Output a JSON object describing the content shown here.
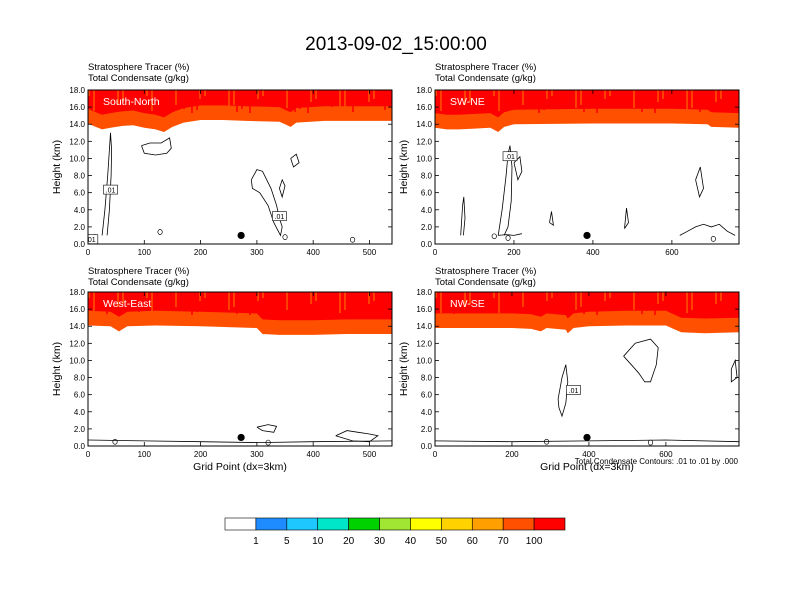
{
  "title": "2013-09-02_15:00:00",
  "colors": {
    "levels": [
      "#ffffff",
      "#1e8cff",
      "#1ec8ff",
      "#00e6c8",
      "#00d200",
      "#a0e632",
      "#ffff00",
      "#ffd200",
      "#ffa000",
      "#ff5000",
      "#ff0000"
    ],
    "contour": "#000000",
    "dot": "#000000"
  },
  "footnote": "Total Condensate Contours: .01 to .01 by .000",
  "chart_data": {
    "type": "contour",
    "colorbar": {
      "labels": [
        "1",
        "5",
        "10",
        "20",
        "30",
        "40",
        "50",
        "60",
        "70",
        "100"
      ]
    },
    "panels": [
      {
        "id": "south-north",
        "label": "South-North",
        "subtitle1": "Stratosphere Tracer   (%)",
        "subtitle2": "Total Condensate   (g/kg)",
        "ylabel": "Height (km)",
        "xlabel": "",
        "xlim": [
          0,
          540
        ],
        "ylim": [
          0,
          18
        ],
        "xticks": [
          0,
          100,
          200,
          300,
          400,
          500
        ],
        "yticks": [
          "0.0",
          "2.0",
          "4.0",
          "6.0",
          "8.0",
          "10.0",
          "12.0",
          "14.0",
          "16.0",
          "18.0"
        ],
        "marker": [
          272,
          1.0
        ],
        "contour_label": ".01",
        "contour_label_pos": [
          [
            40,
            6.3
          ],
          [
            340,
            3.2
          ],
          [
            5,
            0.5
          ]
        ],
        "tropopause": [
          [
            0,
            15.3
          ],
          [
            10,
            15.0
          ],
          [
            25,
            14.6
          ],
          [
            40,
            14.8
          ],
          [
            60,
            15.0
          ],
          [
            80,
            15.1
          ],
          [
            100,
            14.8
          ],
          [
            120,
            14.6
          ],
          [
            135,
            14.3
          ],
          [
            150,
            14.9
          ],
          [
            170,
            15.4
          ],
          [
            200,
            15.7
          ],
          [
            240,
            15.7
          ],
          [
            280,
            15.6
          ],
          [
            340,
            15.5
          ],
          [
            350,
            15.2
          ],
          [
            360,
            14.9
          ],
          [
            370,
            15.4
          ],
          [
            420,
            15.6
          ],
          [
            540,
            15.6
          ]
        ],
        "dips": [
          [
            12,
            0.8
          ],
          [
            128,
            1.4
          ],
          [
            350,
            0.8
          ],
          [
            470,
            0.5
          ]
        ],
        "contours": [
          [
            [
              25,
              1.0
            ],
            [
              30,
              4
            ],
            [
              35,
              8
            ],
            [
              38,
              11
            ],
            [
              40,
              13
            ],
            [
              42,
              11
            ],
            [
              41,
              8
            ],
            [
              38,
              4
            ],
            [
              34,
              1.0
            ]
          ],
          [
            [
              95,
              11.5
            ],
            [
              110,
              11.8
            ],
            [
              130,
              11.8
            ],
            [
              145,
              12.4
            ],
            [
              148,
              11.2
            ],
            [
              140,
              10.6
            ],
            [
              120,
              10.4
            ],
            [
              100,
              10.6
            ],
            [
              95,
              11.5
            ]
          ],
          [
            [
              290,
              7.5
            ],
            [
              300,
              8.7
            ],
            [
              310,
              8.5
            ],
            [
              325,
              6.5
            ],
            [
              335,
              4.5
            ],
            [
              340,
              3
            ],
            [
              345,
              2
            ],
            [
              342,
              1
            ],
            [
              330,
              2.5
            ],
            [
              320,
              4.5
            ],
            [
              305,
              6
            ],
            [
              292,
              6.5
            ],
            [
              290,
              7.5
            ]
          ],
          [
            [
              360,
              10.0
            ],
            [
              370,
              10.5
            ],
            [
              375,
              9.5
            ],
            [
              365,
              9.0
            ],
            [
              360,
              10.0
            ]
          ],
          [
            [
              340,
              6.5
            ],
            [
              345,
              7.5
            ],
            [
              350,
              6.8
            ],
            [
              345,
              5.5
            ],
            [
              340,
              6.5
            ]
          ]
        ]
      },
      {
        "id": "sw-ne",
        "label": "SW-NE",
        "subtitle1": "Stratosphere Tracer   (%)",
        "subtitle2": "Total Condensate   (g/kg)",
        "ylabel": "Height (km)",
        "xlabel": "",
        "xlim": [
          0,
          770
        ],
        "ylim": [
          0,
          18
        ],
        "xticks": [
          0,
          200,
          400,
          600
        ],
        "yticks": [
          "0.0",
          "2.0",
          "4.0",
          "6.0",
          "8.0",
          "10.0",
          "12.0",
          "14.0",
          "16.0",
          "18.0"
        ],
        "marker": [
          385,
          1.0
        ],
        "contour_label": ".01",
        "contour_label_pos": [
          [
            190,
            10.2
          ]
        ],
        "tropopause": [
          [
            0,
            14.8
          ],
          [
            30,
            14.6
          ],
          [
            60,
            14.6
          ],
          [
            100,
            14.7
          ],
          [
            140,
            14.8
          ],
          [
            160,
            14.3
          ],
          [
            175,
            14.9
          ],
          [
            200,
            15.2
          ],
          [
            400,
            15.3
          ],
          [
            600,
            15.3
          ],
          [
            690,
            15.2
          ],
          [
            700,
            14.9
          ],
          [
            770,
            14.8
          ]
        ],
        "dips": [
          [
            150,
            0.9
          ],
          [
            185,
            0.7
          ],
          [
            705,
            0.6
          ]
        ],
        "contours": [
          [
            [
              160,
              1.0
            ],
            [
              170,
              4
            ],
            [
              180,
              8
            ],
            [
              185,
              10.5
            ],
            [
              190,
              11.5
            ],
            [
              195,
              9
            ],
            [
              193,
              5
            ],
            [
              185,
              2
            ],
            [
              175,
              1
            ]
          ],
          [
            [
              160,
              1.0
            ],
            [
              180,
              1.1
            ],
            [
              200,
              1.0
            ],
            [
              220,
              1.2
            ]
          ],
          [
            [
              65,
              1.0
            ],
            [
              70,
              4.5
            ],
            [
              73,
              5.5
            ],
            [
              76,
              3
            ],
            [
              72,
              1.0
            ]
          ],
          [
            [
              200,
              9.5
            ],
            [
              215,
              10.2
            ],
            [
              220,
              8.5
            ],
            [
              210,
              7.5
            ],
            [
              200,
              9.5
            ]
          ],
          [
            [
              290,
              2.5
            ],
            [
              295,
              3.8
            ],
            [
              300,
              2.2
            ],
            [
              290,
              2.5
            ]
          ],
          [
            [
              480,
              1.8
            ],
            [
              485,
              4.2
            ],
            [
              490,
              2.5
            ],
            [
              480,
              1.8
            ]
          ],
          [
            [
              660,
              7.5
            ],
            [
              672,
              9.0
            ],
            [
              680,
              6.5
            ],
            [
              670,
              5.5
            ],
            [
              660,
              7.5
            ]
          ],
          [
            [
              620,
              1.0
            ],
            [
              640,
              1.5
            ],
            [
              660,
              2.0
            ],
            [
              680,
              2.3
            ],
            [
              700,
              2.0
            ],
            [
              720,
              2.3
            ],
            [
              740,
              1.5
            ],
            [
              760,
              1.0
            ]
          ]
        ]
      },
      {
        "id": "west-east",
        "label": "West-East",
        "subtitle1": "Stratosphere Tracer   (%)",
        "subtitle2": "Total Condensate   (g/kg)",
        "ylabel": "Height (km)",
        "xlabel": "Grid Point (dx=3km)",
        "xlim": [
          0,
          540
        ],
        "ylim": [
          0,
          18
        ],
        "xticks": [
          0,
          100,
          200,
          300,
          400,
          500
        ],
        "yticks": [
          "0.0",
          "2.0",
          "4.0",
          "6.0",
          "8.0",
          "10.0",
          "12.0",
          "14.0",
          "16.0",
          "18.0"
        ],
        "marker": [
          272,
          1.0
        ],
        "contour_label": "",
        "contour_label_pos": [],
        "tropopause": [
          [
            0,
            15.3
          ],
          [
            40,
            15.2
          ],
          [
            55,
            14.6
          ],
          [
            70,
            15.2
          ],
          [
            120,
            15.3
          ],
          [
            200,
            15.2
          ],
          [
            300,
            15.0
          ],
          [
            310,
            14.3
          ],
          [
            340,
            14.2
          ],
          [
            400,
            14.2
          ],
          [
            460,
            14.3
          ],
          [
            540,
            14.3
          ]
        ],
        "dips": [
          [
            48,
            0.5
          ],
          [
            320,
            0.4
          ]
        ],
        "contours": [
          [
            [
              300,
              2.2
            ],
            [
              320,
              2.5
            ],
            [
              335,
              2.3
            ],
            [
              330,
              1.6
            ],
            [
              310,
              1.8
            ],
            [
              300,
              2.2
            ]
          ],
          [
            [
              440,
              1.2
            ],
            [
              460,
              1.8
            ],
            [
              480,
              1.6
            ],
            [
              500,
              1.4
            ],
            [
              515,
              1.2
            ],
            [
              500,
              0.5
            ],
            [
              470,
              0.6
            ],
            [
              440,
              1.2
            ]
          ],
          [
            [
              0,
              0.7
            ],
            [
              100,
              0.6
            ],
            [
              200,
              0.5
            ],
            [
              300,
              0.4
            ],
            [
              400,
              0.5
            ],
            [
              540,
              0.6
            ]
          ]
        ]
      },
      {
        "id": "nw-se",
        "label": "NW-SE",
        "subtitle1": "Stratosphere Tracer   (%)",
        "subtitle2": "Total Condensate   (g/kg)",
        "ylabel": "Height (km)",
        "xlabel": "Grid Point (dx=3km)",
        "xlim": [
          0,
          790
        ],
        "ylim": [
          0,
          18
        ],
        "xticks": [
          0,
          200,
          400,
          600
        ],
        "yticks": [
          "0.0",
          "2.0",
          "4.0",
          "6.0",
          "8.0",
          "10.0",
          "12.0",
          "14.0",
          "16.0",
          "18.0"
        ],
        "marker": [
          395,
          1.0
        ],
        "contour_label": ".01",
        "contour_label_pos": [
          [
            360,
            6.5
          ]
        ],
        "tropopause": [
          [
            0,
            15.0
          ],
          [
            100,
            15.0
          ],
          [
            200,
            15.0
          ],
          [
            250,
            14.9
          ],
          [
            275,
            14.6
          ],
          [
            290,
            15.0
          ],
          [
            340,
            14.8
          ],
          [
            345,
            14.4
          ],
          [
            360,
            15.0
          ],
          [
            400,
            15.2
          ],
          [
            500,
            15.3
          ],
          [
            600,
            15.3
          ],
          [
            625,
            14.8
          ],
          [
            640,
            14.5
          ],
          [
            700,
            14.4
          ],
          [
            790,
            14.5
          ]
        ],
        "dips": [
          [
            290,
            0.5
          ],
          [
            560,
            0.4
          ]
        ],
        "contours": [
          [
            [
              320,
              5.5
            ],
            [
              330,
              8
            ],
            [
              340,
              9.5
            ],
            [
              345,
              7.5
            ],
            [
              340,
              5
            ],
            [
              330,
              3.5
            ],
            [
              322,
              4.5
            ],
            [
              320,
              5.5
            ]
          ],
          [
            [
              490,
              10.5
            ],
            [
              520,
              12.0
            ],
            [
              560,
              12.5
            ],
            [
              580,
              11.5
            ],
            [
              575,
              9.5
            ],
            [
              560,
              7.5
            ],
            [
              545,
              7.5
            ],
            [
              530,
              8.5
            ],
            [
              510,
              9.5
            ],
            [
              490,
              10.5
            ]
          ],
          [
            [
              770,
              9.0
            ],
            [
              780,
              10.0
            ],
            [
              785,
              8.0
            ],
            [
              770,
              7.5
            ],
            [
              770,
              9.0
            ]
          ],
          [
            [
              0,
              0.6
            ],
            [
              200,
              0.5
            ],
            [
              400,
              0.6
            ],
            [
              600,
              0.7
            ],
            [
              790,
              0.5
            ]
          ]
        ]
      }
    ]
  }
}
